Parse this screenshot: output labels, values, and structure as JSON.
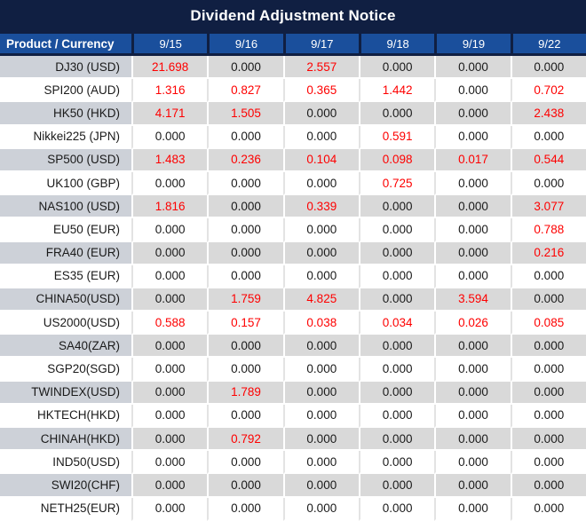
{
  "colors": {
    "title_bg": "#101f42",
    "header_bg": "#1a4f9c",
    "stripe_value_bg": "#d9d9d9",
    "stripe_product_bg": "#cdd1d8",
    "nonzero_value_color": "#fe0000",
    "zero_value_color": "#1a1a1a",
    "header_text": "#ffffff"
  },
  "chart_data": {
    "type": "table",
    "title": "Dividend Adjustment Notice",
    "columns": [
      "Product / Currency",
      "9/15",
      "9/16",
      "9/17",
      "9/18",
      "9/19",
      "9/22"
    ],
    "rows": [
      {
        "product": "DJ30 (USD)",
        "values": [
          "21.698",
          "0.000",
          "2.557",
          "0.000",
          "0.000",
          "0.000"
        ]
      },
      {
        "product": "SPI200 (AUD)",
        "values": [
          "1.316",
          "0.827",
          "0.365",
          "1.442",
          "0.000",
          "0.702"
        ]
      },
      {
        "product": "HK50 (HKD)",
        "values": [
          "4.171",
          "1.505",
          "0.000",
          "0.000",
          "0.000",
          "2.438"
        ]
      },
      {
        "product": "Nikkei225 (JPN)",
        "values": [
          "0.000",
          "0.000",
          "0.000",
          "0.591",
          "0.000",
          "0.000"
        ]
      },
      {
        "product": "SP500 (USD)",
        "values": [
          "1.483",
          "0.236",
          "0.104",
          "0.098",
          "0.017",
          "0.544"
        ]
      },
      {
        "product": "UK100 (GBP)",
        "values": [
          "0.000",
          "0.000",
          "0.000",
          "0.725",
          "0.000",
          "0.000"
        ]
      },
      {
        "product": "NAS100 (USD)",
        "values": [
          "1.816",
          "0.000",
          "0.339",
          "0.000",
          "0.000",
          "3.077"
        ]
      },
      {
        "product": "EU50 (EUR)",
        "values": [
          "0.000",
          "0.000",
          "0.000",
          "0.000",
          "0.000",
          "0.788"
        ]
      },
      {
        "product": "FRA40 (EUR)",
        "values": [
          "0.000",
          "0.000",
          "0.000",
          "0.000",
          "0.000",
          "0.216"
        ]
      },
      {
        "product": "ES35 (EUR)",
        "values": [
          "0.000",
          "0.000",
          "0.000",
          "0.000",
          "0.000",
          "0.000"
        ]
      },
      {
        "product": "CHINA50(USD)",
        "values": [
          "0.000",
          "1.759",
          "4.825",
          "0.000",
          "3.594",
          "0.000"
        ]
      },
      {
        "product": "US2000(USD)",
        "values": [
          "0.588",
          "0.157",
          "0.038",
          "0.034",
          "0.026",
          "0.085"
        ]
      },
      {
        "product": "SA40(ZAR)",
        "values": [
          "0.000",
          "0.000",
          "0.000",
          "0.000",
          "0.000",
          "0.000"
        ]
      },
      {
        "product": "SGP20(SGD)",
        "values": [
          "0.000",
          "0.000",
          "0.000",
          "0.000",
          "0.000",
          "0.000"
        ]
      },
      {
        "product": "TWINDEX(USD)",
        "values": [
          "0.000",
          "1.789",
          "0.000",
          "0.000",
          "0.000",
          "0.000"
        ]
      },
      {
        "product": "HKTECH(HKD)",
        "values": [
          "0.000",
          "0.000",
          "0.000",
          "0.000",
          "0.000",
          "0.000"
        ]
      },
      {
        "product": "CHINAH(HKD)",
        "values": [
          "0.000",
          "0.792",
          "0.000",
          "0.000",
          "0.000",
          "0.000"
        ]
      },
      {
        "product": "IND50(USD)",
        "values": [
          "0.000",
          "0.000",
          "0.000",
          "0.000",
          "0.000",
          "0.000"
        ]
      },
      {
        "product": "SWI20(CHF)",
        "values": [
          "0.000",
          "0.000",
          "0.000",
          "0.000",
          "0.000",
          "0.000"
        ]
      },
      {
        "product": "NETH25(EUR)",
        "values": [
          "0.000",
          "0.000",
          "0.000",
          "0.000",
          "0.000",
          "0.000"
        ]
      }
    ],
    "layout_hints": {
      "striped_rows": "odd rows shaded gray",
      "value_color_rule": "non-zero values rendered in red, zeros in black"
    }
  }
}
